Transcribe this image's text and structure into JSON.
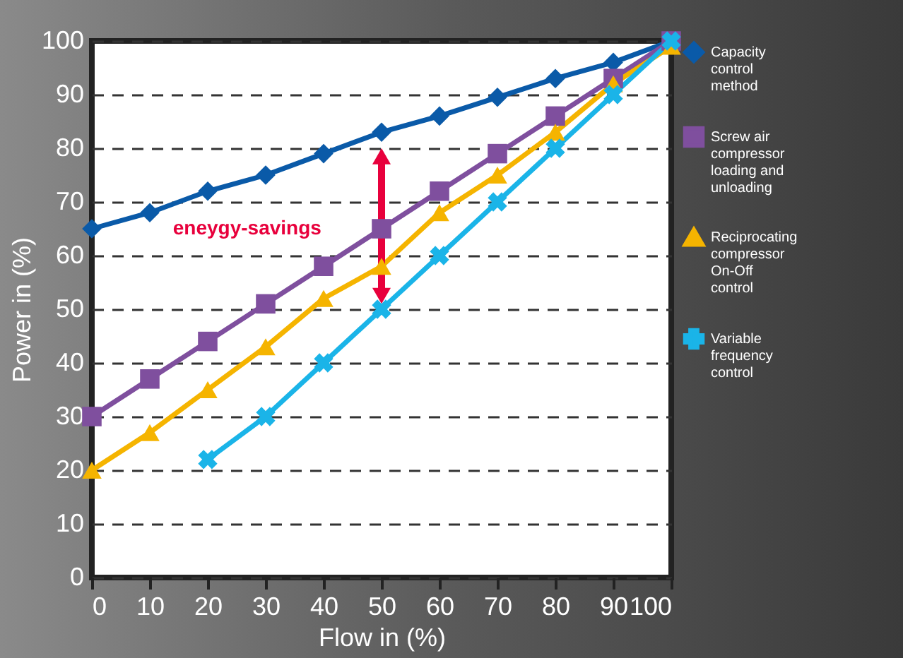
{
  "chart_data": {
    "type": "line",
    "xlabel": "Flow in (%)",
    "ylabel": "Power in (%)",
    "x": [
      0,
      10,
      20,
      30,
      40,
      50,
      60,
      70,
      80,
      90,
      100
    ],
    "series": [
      {
        "name": "Capacity control method",
        "color": "#0a5aa8",
        "marker": "diamond",
        "values": [
          65,
          68,
          72,
          75,
          79,
          83,
          86,
          89.5,
          93,
          96,
          100
        ]
      },
      {
        "name": "Screw air compressor loading and unloading",
        "color": "#7f4f9e",
        "marker": "square",
        "values": [
          30,
          37,
          44,
          51,
          58,
          65,
          72,
          79,
          86,
          93,
          100
        ]
      },
      {
        "name": "Reciprocating compressor On-Off control",
        "color": "#f5b400",
        "marker": "triangle",
        "values": [
          20,
          27,
          35,
          43,
          52,
          58,
          68,
          75,
          83,
          92,
          99
        ]
      },
      {
        "name": "Variable frequency control",
        "color": "#1ab4e8",
        "marker": "cross",
        "values": [
          null,
          null,
          22,
          30,
          40,
          50,
          60,
          70,
          80,
          90,
          100
        ]
      }
    ],
    "xlim": [
      0,
      100
    ],
    "xticks": [
      0,
      10,
      20,
      30,
      40,
      50,
      60,
      70,
      80,
      90,
      100
    ],
    "ylim": [
      0,
      100
    ],
    "yticks": [
      0,
      10,
      20,
      30,
      40,
      50,
      60,
      70,
      80,
      90,
      100
    ],
    "grid": "y",
    "legend": "right",
    "line_style": "solid",
    "annotations": [
      "eneygy-savings"
    ]
  }
}
